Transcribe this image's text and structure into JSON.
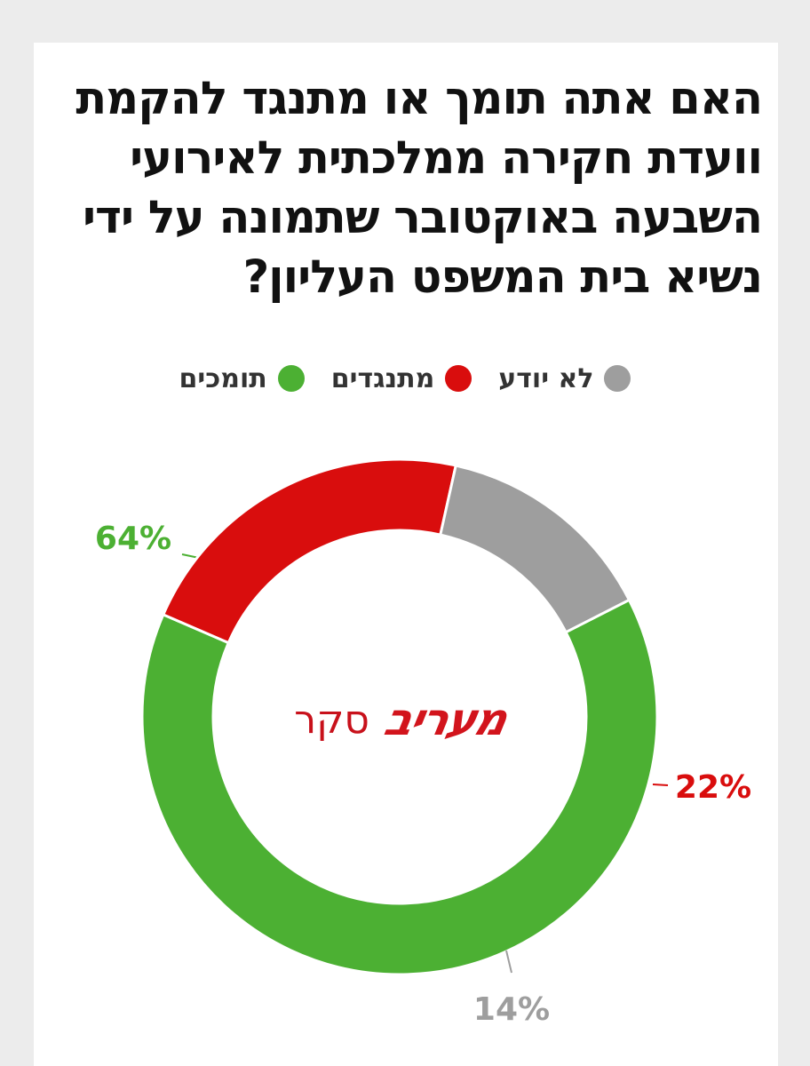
{
  "colors": {
    "support": "#4cb033",
    "oppose": "#d90d0d",
    "unknown": "#9e9e9e",
    "title": "#111111",
    "brand": "#d2141c"
  },
  "logo": {
    "survey_label": "סקר",
    "brand_label": "מעריב"
  },
  "chart_data": {
    "type": "pie",
    "variant": "donut",
    "title": "האם אתה תומך או מתנגד להקמת וועדת חקירה ממלכתית לאירועי השבעה באוקטובר שתמונה על ידי נשיא בית המשפט העליון?",
    "legend_position": "top",
    "legend": [
      "תומכים",
      "מתנגדים",
      "לא יודע"
    ],
    "slices": [
      {
        "label": "תומכים",
        "value": 64,
        "value_label": "64%",
        "color": "#4cb033"
      },
      {
        "label": "מתנגדים",
        "value": 22,
        "value_label": "22%",
        "color": "#d90d0d"
      },
      {
        "label": "לא יודע",
        "value": 14,
        "value_label": "14%",
        "color": "#9e9e9e"
      }
    ]
  }
}
